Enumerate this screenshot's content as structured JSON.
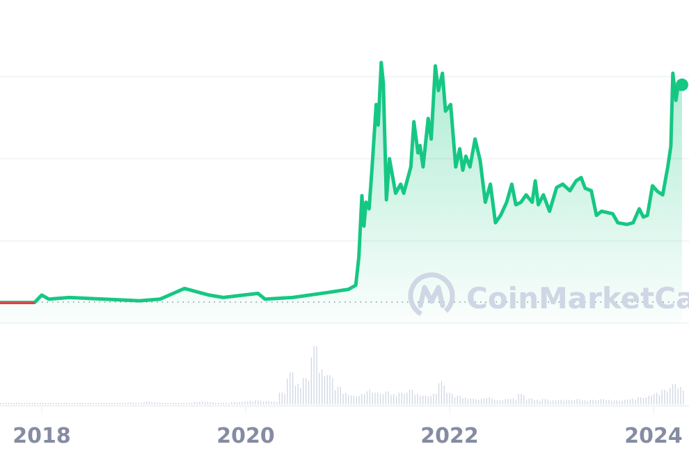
{
  "watermark": "CoinMarketCap",
  "colors": {
    "line": "#16c784",
    "down": "#ea3943",
    "grid": "#eff2f5",
    "volume": "#cfd6e4",
    "tick": "#858ca2"
  },
  "chart_data": {
    "type": "area",
    "title": "",
    "xlabel": "",
    "ylabel": "",
    "x_tick_labels": [
      "2018",
      "2020",
      "2022",
      "2024"
    ],
    "x_ticks": [
      2018,
      2020,
      2022,
      2024
    ],
    "xlim": [
      2017.59,
      2024.34
    ],
    "ylim": [
      0,
      3.4
    ],
    "y_tick_labels": [],
    "grid": true,
    "legend": "none",
    "note_units": "price relative to gridline spacing (no y-axis labels printed)",
    "series": [
      {
        "x": [
          2017.59,
          2017.93,
          2018,
          2018.07,
          2018.27,
          2018.61,
          2018.96,
          2019.16,
          2019.4,
          2019.64,
          2019.78,
          2019.98,
          2020.12,
          2020.19,
          2020.46,
          2020.8,
          2021.01,
          2021.08,
          2021.11,
          2021.14,
          2021.16,
          2021.18,
          2021.21,
          2021.24,
          2021.28,
          2021.3,
          2021.33,
          2021.35,
          2021.38,
          2021.41,
          2021.47,
          2021.52,
          2021.55,
          2021.62,
          2021.65,
          2021.69,
          2021.71,
          2021.74,
          2021.79,
          2021.82,
          2021.86,
          2021.89,
          2021.93,
          2021.96,
          2022.01,
          2022.06,
          2022.1,
          2022.13,
          2022.16,
          2022.2,
          2022.25,
          2022.3,
          2022.35,
          2022.4,
          2022.45,
          2022.5,
          2022.56,
          2022.61,
          2022.65,
          2022.7,
          2022.75,
          2022.81,
          2022.84,
          2022.87,
          2022.92,
          2022.98,
          2023.05,
          2023.11,
          2023.18,
          2023.24,
          2023.29,
          2023.33,
          2023.39,
          2023.44,
          2023.49,
          2023.6,
          2023.65,
          2023.74,
          2023.8,
          2023.86,
          2023.9,
          2023.94,
          2023.99,
          2024.04,
          2024.09,
          2024.14,
          2024.17,
          2024.19,
          2024.22,
          2024.24,
          2024.28
        ],
        "y": [
          0.25,
          0.25,
          0.34,
          0.29,
          0.31,
          0.29,
          0.27,
          0.29,
          0.42,
          0.34,
          0.31,
          0.34,
          0.36,
          0.29,
          0.31,
          0.37,
          0.41,
          0.46,
          0.8,
          1.55,
          1.18,
          1.47,
          1.39,
          1.9,
          2.66,
          2.41,
          3.17,
          2.92,
          1.5,
          2.0,
          1.58,
          1.69,
          1.58,
          1.9,
          2.45,
          2.07,
          2.16,
          1.9,
          2.49,
          2.24,
          3.13,
          2.83,
          3.04,
          2.58,
          2.66,
          1.9,
          2.12,
          1.86,
          2.03,
          1.9,
          2.24,
          1.98,
          1.47,
          1.69,
          1.22,
          1.31,
          1.47,
          1.69,
          1.44,
          1.47,
          1.56,
          1.47,
          1.73,
          1.44,
          1.56,
          1.36,
          1.65,
          1.69,
          1.61,
          1.73,
          1.77,
          1.64,
          1.61,
          1.31,
          1.36,
          1.33,
          1.22,
          1.2,
          1.22,
          1.39,
          1.29,
          1.31,
          1.67,
          1.6,
          1.56,
          1.9,
          2.15,
          3.04,
          2.71,
          2.88,
          2.9
        ]
      }
    ],
    "volume": [
      3,
      3,
      3,
      3,
      3,
      3,
      3,
      3,
      3,
      3,
      3,
      3,
      3,
      3,
      3,
      3,
      4,
      3,
      5,
      4,
      3,
      3,
      3,
      3,
      4,
      5,
      4,
      3,
      3,
      4,
      5,
      6,
      7,
      6,
      5,
      20,
      55,
      35,
      45,
      100,
      60,
      50,
      30,
      20,
      15,
      18,
      25,
      20,
      22,
      18,
      20,
      25,
      18,
      15,
      18,
      40,
      20,
      15,
      12,
      10,
      10,
      12,
      8,
      9,
      10,
      18,
      10,
      8,
      9,
      7,
      8,
      8,
      9,
      7,
      8,
      9,
      8,
      7,
      8,
      10,
      12,
      15,
      20,
      25,
      35,
      30
    ]
  }
}
